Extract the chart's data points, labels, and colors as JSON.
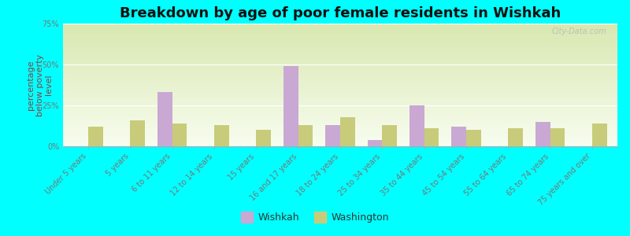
{
  "title": "Breakdown by age of poor female residents in Wishkah",
  "ylabel": "percentage\nbelow poverty\nlevel",
  "categories": [
    "Under 5 years",
    "5 years",
    "6 to 11 years",
    "12 to 14 years",
    "15 years",
    "16 and 17 years",
    "18 to 24 years",
    "25 to 34 years",
    "35 to 44 years",
    "45 to 54 years",
    "55 to 64 years",
    "65 to 74 years",
    "75 years and over"
  ],
  "wishkah": [
    0,
    0,
    33,
    0,
    0,
    49,
    13,
    4,
    25,
    12,
    0,
    15,
    0
  ],
  "washington": [
    12,
    16,
    14,
    13,
    10,
    13,
    18,
    13,
    11,
    10,
    11,
    11,
    14
  ],
  "wishkah_color": "#c9a8d4",
  "washington_color": "#c8cc7a",
  "bg_color_top": "#d8e8b0",
  "bg_color_bottom": "#f8fdf0",
  "background_outer": "#00ffff",
  "ylim": [
    0,
    75
  ],
  "yticks": [
    0,
    25,
    50,
    75
  ],
  "ytick_labels": [
    "0%",
    "25%",
    "50%",
    "75%"
  ],
  "bar_width": 0.35,
  "title_fontsize": 13,
  "ylabel_fontsize": 8,
  "ylabel_color": "#884444",
  "tick_fontsize": 7,
  "tick_color": "#777777",
  "legend_fontsize": 9,
  "watermark": "City-Data.com"
}
